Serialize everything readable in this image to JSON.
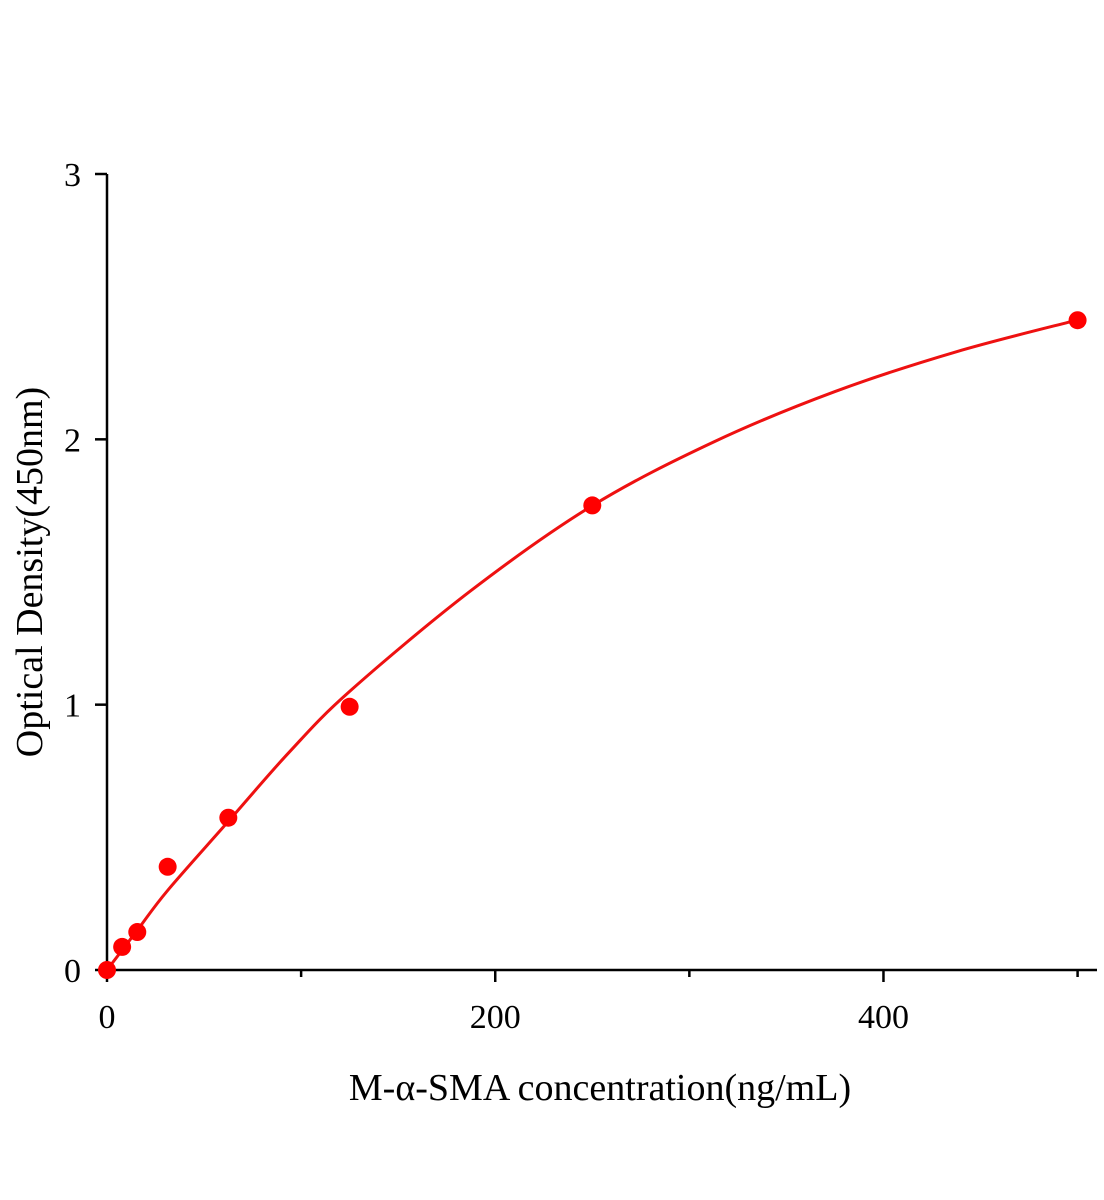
{
  "chart_data": {
    "type": "scatter",
    "xlabel": "M-α-SMA concentration(ng/mL)",
    "ylabel": "Optical Density(450nm)",
    "x": [
      0,
      7.8,
      15.6,
      31.25,
      62.5,
      125,
      250,
      500
    ],
    "values": [
      0,
      0.087,
      0.143,
      0.389,
      0.574,
      0.992,
      1.751,
      2.449
    ],
    "color": "#ff0000",
    "fit": {
      "x": [
        0,
        15.625,
        31.25,
        62.5,
        93.75,
        125,
        187.5,
        250,
        312.5,
        375,
        437.5,
        500
      ],
      "values": [
        0,
        0.15,
        0.3,
        0.56,
        0.82,
        1.05,
        1.43,
        1.75,
        1.99,
        2.18,
        2.33,
        2.45
      ],
      "color": "#ee1111"
    },
    "xlim": [
      0,
      510
    ],
    "ylim": [
      0,
      3
    ],
    "xticks": [
      0,
      200,
      400
    ],
    "xminor_ticks": [
      100,
      300,
      500
    ],
    "yticks": [
      0,
      1,
      2,
      3
    ]
  }
}
